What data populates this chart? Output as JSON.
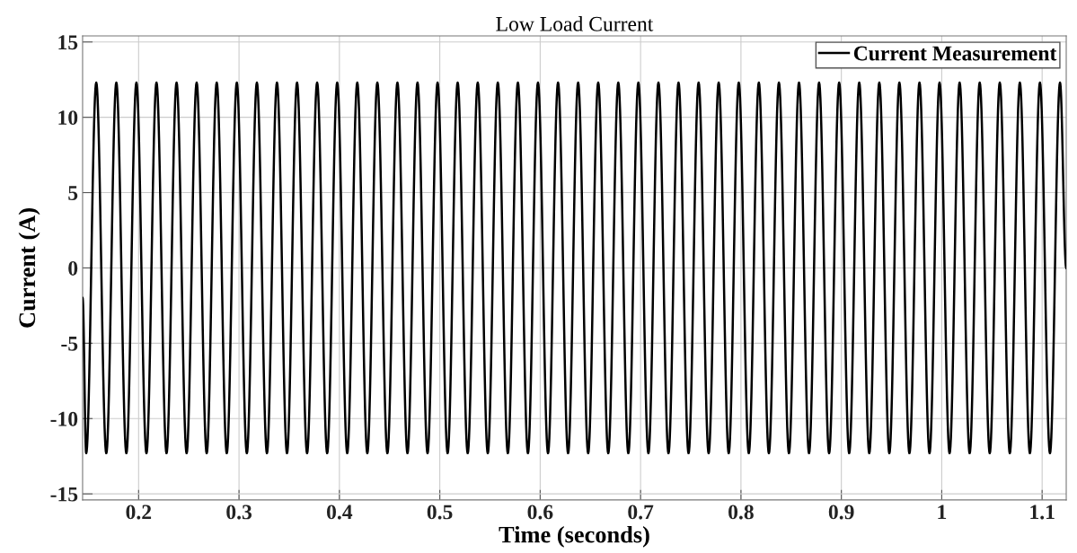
{
  "chart_data": {
    "type": "line",
    "title": "Low Load Current",
    "xlabel": "Time (seconds)",
    "ylabel": "Current (A)",
    "x": [
      0.1442,
      0.1478,
      0.1578,
      0.1678,
      0.1778,
      0.1878,
      0.1978,
      0.2078,
      0.2178,
      0.2278,
      0.2378,
      0.2478,
      0.2578,
      0.2678,
      0.2778,
      0.2878,
      0.2978,
      0.3078,
      0.3178,
      0.3278,
      0.3378,
      0.3478,
      0.3578,
      0.3678,
      0.3778,
      0.3878,
      0.3978,
      0.4078,
      0.4178,
      0.4278,
      0.4378,
      0.4478,
      0.4578,
      0.4678,
      0.4778,
      0.4878,
      0.4978,
      0.5078,
      0.5178,
      0.5278,
      0.5378,
      0.5478,
      0.5578,
      0.5678,
      0.5778,
      0.5878,
      0.5978,
      0.6078,
      0.6178,
      0.6278,
      0.6378,
      0.6478,
      0.6578,
      0.6678,
      0.6778,
      0.6878,
      0.6978,
      0.7078,
      0.7178,
      0.7278,
      0.7378,
      0.7478,
      0.7578,
      0.7678,
      0.7778,
      0.7878,
      0.7978,
      0.8078,
      0.8178,
      0.8278,
      0.8378,
      0.8478,
      0.8578,
      0.8678,
      0.8778,
      0.8878,
      0.8978,
      0.9078,
      0.9178,
      0.9278,
      0.9378,
      0.9478,
      0.9578,
      0.9678,
      0.9778,
      0.9878,
      0.9978,
      1.0078,
      1.0178,
      1.0278,
      1.0378,
      1.0478,
      1.0578,
      1.0678,
      1.0778,
      1.0878,
      1.0978,
      1.1078,
      1.1178,
      1.124
    ],
    "series": [
      {
        "name": "Current Measurement",
        "color": "#000000",
        "values": [
          -2,
          -12.3,
          12.3,
          -12.3,
          12.3,
          -12.3,
          12.3,
          -12.3,
          12.3,
          -12.3,
          12.3,
          -12.3,
          12.3,
          -12.3,
          12.3,
          -12.3,
          12.3,
          -12.3,
          12.3,
          -12.3,
          12.3,
          -12.3,
          12.3,
          -12.3,
          12.3,
          -12.3,
          12.3,
          -12.3,
          12.3,
          -12.3,
          12.3,
          -12.3,
          12.3,
          -12.3,
          12.3,
          -12.3,
          12.3,
          -12.3,
          12.3,
          -12.3,
          12.3,
          -12.3,
          12.3,
          -12.3,
          12.3,
          -12.3,
          12.3,
          -12.3,
          12.3,
          -12.3,
          12.3,
          -12.3,
          12.3,
          -12.3,
          12.3,
          -12.3,
          12.3,
          -12.3,
          12.3,
          -12.3,
          12.3,
          -12.3,
          12.3,
          -12.3,
          12.3,
          -12.3,
          12.3,
          -12.3,
          12.3,
          -12.3,
          12.3,
          -12.3,
          12.3,
          -12.3,
          12.3,
          -12.3,
          12.3,
          -12.3,
          12.3,
          -12.3,
          12.3,
          -12.3,
          12.3,
          -12.3,
          12.3,
          -12.3,
          12.3,
          -12.3,
          12.3,
          -12.3,
          12.3,
          -12.3,
          12.3,
          -12.3,
          12.3,
          -12.3,
          12.3,
          -12.3,
          12.3,
          0
        ]
      }
    ],
    "xlim": [
      0.1442,
      1.124
    ],
    "ylim": [
      -15.4,
      15.4
    ],
    "xticks": [
      0.2,
      0.3,
      0.4,
      0.5,
      0.6,
      0.7,
      0.8,
      0.9,
      1,
      1.1
    ],
    "yticks": [
      -15,
      -10,
      -5,
      0,
      5,
      10,
      15
    ],
    "grid": true,
    "legend": "top right",
    "marker": "none",
    "line_style": "solid"
  }
}
